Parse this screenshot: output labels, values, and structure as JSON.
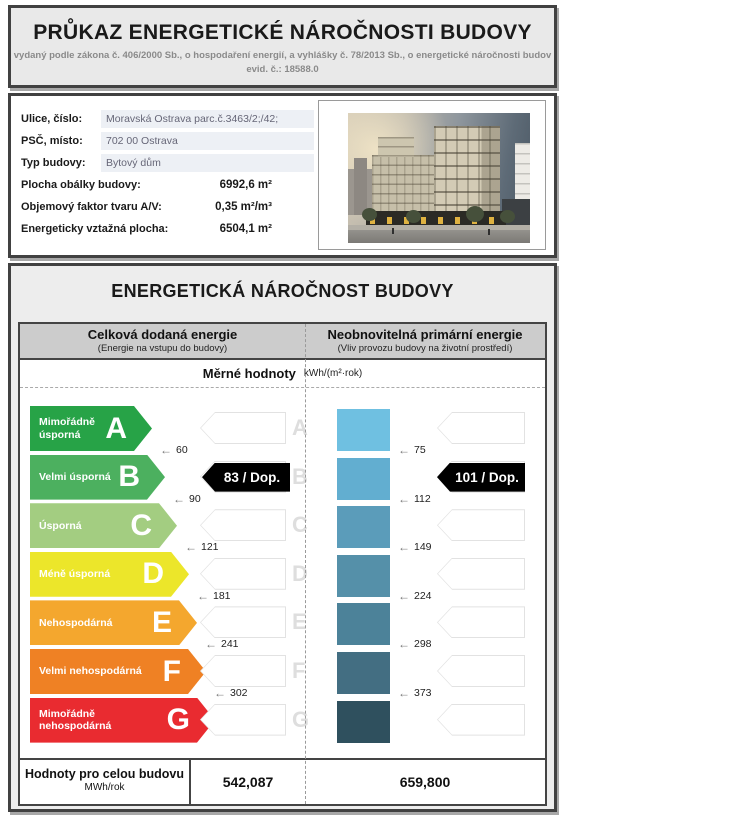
{
  "certificate": {
    "title": "PRŮKAZ ENERGETICKÉ NÁROČNOSTI BUDOVY",
    "subtitle": "vydaný podle zákona č. 406/2000 Sb., o hospodaření energií, a vyhlášky č. 78/2013 Sb., o energetické náročnosti budov",
    "evid": "evid. č.: 18588.0"
  },
  "building_info": {
    "rows": [
      {
        "label": "Ulice, číslo:",
        "value": "Moravská Ostrava parc.č.3463/2;/42;",
        "highlight": true
      },
      {
        "label": "PSČ, místo:",
        "value": "702 00  Ostrava",
        "highlight": true
      },
      {
        "label": "Typ budovy:",
        "value": "Bytový dům",
        "highlight": true
      },
      {
        "label": "Plocha obálky budovy:",
        "value": "6992,6 m²",
        "highlight": false
      },
      {
        "label": "Objemový faktor tvaru A/V:",
        "value": "0,35 m²/m³",
        "highlight": false
      },
      {
        "label": "Energeticky vztažná plocha:",
        "value": "6504,1 m²",
        "highlight": false
      }
    ],
    "photo": "architectural rendering of apartment building"
  },
  "energy_section": {
    "title": "ENERGETICKÁ NÁROČNOST BUDOVY",
    "columns": [
      {
        "title": "Celková dodaná energie",
        "subtitle": "(Energie na vstupu do budovy)",
        "total": "542,087"
      },
      {
        "title": "Neobnovitelná primární energie",
        "subtitle": "(Vliv provozu budovy na životní prostředí)",
        "total": "659,800"
      }
    ],
    "measured_label": "Měrné hodnoty",
    "measured_unit": "kWh/(m²·rok)",
    "totals_label": "Hodnoty pro celou budovu",
    "totals_unit": "MWh/rok",
    "rating_left": {
      "value_label": "83 / Dop.",
      "class_letter": "B",
      "row_index": 1
    },
    "rating_right": {
      "value_label": "101 / Dop.",
      "row_index": 1
    },
    "classes": [
      {
        "letter": "A",
        "label": "Mimořádně úsporná",
        "color": "#27a347",
        "arrow_width": 122,
        "threshold": "60"
      },
      {
        "letter": "B",
        "label": "Velmi úsporná",
        "color": "#4cb05f",
        "arrow_width": 135,
        "threshold": "90"
      },
      {
        "letter": "C",
        "label": "Úsporná",
        "color": "#a3cd81",
        "arrow_width": 147,
        "threshold": "121"
      },
      {
        "letter": "D",
        "label": "Méně úsporná",
        "color": "#ece62a",
        "arrow_width": 159,
        "threshold": "181"
      },
      {
        "letter": "E",
        "label": "Nehospodárná",
        "color": "#f4a72e",
        "arrow_width": 167,
        "threshold": "241"
      },
      {
        "letter": "F",
        "label": "Velmi nehospodárná",
        "color": "#ef8124",
        "arrow_width": 176,
        "threshold": "302"
      },
      {
        "letter": "G",
        "label": "Mimořádně nehospodárná",
        "color": "#e92b30",
        "arrow_width": 185,
        "threshold": ""
      }
    ],
    "primary_bars": [
      {
        "color": "#6fc0e1",
        "threshold": "75"
      },
      {
        "color": "#62aed0",
        "threshold": "112"
      },
      {
        "color": "#5b9cba",
        "threshold": "149"
      },
      {
        "color": "#5590a9",
        "threshold": "224"
      },
      {
        "color": "#4c8299",
        "threshold": "298"
      },
      {
        "color": "#436e82",
        "threshold": "373"
      },
      {
        "color": "#2f505e",
        "threshold": ""
      }
    ]
  }
}
